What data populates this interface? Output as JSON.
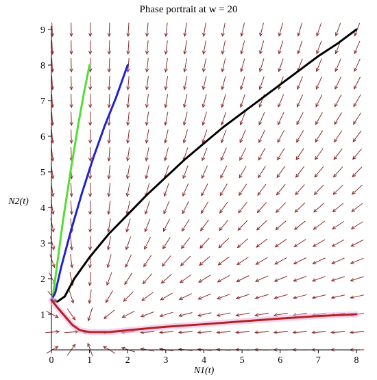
{
  "chart_data": {
    "type": "line",
    "title": "Phase portrait at w = 20",
    "xlabel": "N1(t)",
    "ylabel": "N2(t)",
    "xlim": [
      0,
      8
    ],
    "ylim": [
      0,
      9
    ],
    "x_ticks": [
      "0",
      "1",
      "2",
      "3",
      "4",
      "5",
      "6",
      "7",
      "8"
    ],
    "y_ticks": [
      "1",
      "2",
      "3",
      "4",
      "5",
      "6",
      "7",
      "8",
      "9"
    ],
    "colors": {
      "field_arrows": "#8b2a2a",
      "green_trajectory": "#55dd33",
      "blue_trajectory": "#2222cc",
      "black_trajectory": "#000000",
      "red_trajectory": "#b22222",
      "red_highlight": "#f2b8e6"
    },
    "series": [
      {
        "color": "#55dd33",
        "x": [
          0.0,
          0.05,
          0.15,
          0.3,
          0.5,
          0.7,
          0.85,
          1.0
        ],
        "y": [
          1.4,
          1.6,
          2.4,
          3.6,
          5.0,
          6.3,
          7.2,
          8.0
        ]
      },
      {
        "color": "#2222cc",
        "x": [
          0.0,
          0.1,
          0.25,
          0.5,
          0.8,
          1.1,
          1.4,
          1.7,
          2.0
        ],
        "y": [
          1.4,
          1.6,
          2.3,
          3.3,
          4.4,
          5.4,
          6.3,
          7.1,
          8.0
        ]
      },
      {
        "color": "#000000",
        "x": [
          0.0,
          0.15,
          0.35,
          0.6,
          1.0,
          1.5,
          2.0,
          2.5,
          3.0,
          3.5,
          4.0,
          4.5,
          5.0,
          5.5,
          6.0,
          6.5,
          7.0,
          7.5,
          8.0
        ],
        "y": [
          1.4,
          1.35,
          1.5,
          2.0,
          2.6,
          3.25,
          3.8,
          4.35,
          4.85,
          5.35,
          5.8,
          6.25,
          6.65,
          7.05,
          7.45,
          7.85,
          8.25,
          8.6,
          9.0
        ]
      },
      {
        "color": "#b22222",
        "x": [
          0.0,
          0.15,
          0.35,
          0.55,
          0.75,
          1.0,
          1.5,
          2.0,
          2.5,
          3.0,
          4.0,
          5.0,
          6.0,
          7.0,
          8.0
        ],
        "y": [
          1.4,
          1.2,
          0.95,
          0.7,
          0.55,
          0.5,
          0.5,
          0.55,
          0.6,
          0.65,
          0.72,
          0.8,
          0.88,
          0.95,
          1.0
        ]
      }
    ]
  }
}
